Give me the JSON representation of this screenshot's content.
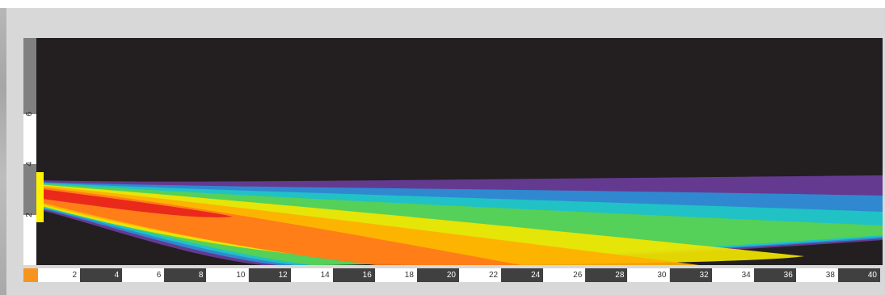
{
  "chart_data": {
    "type": "heatmap",
    "x_ticks": [
      "2",
      "4",
      "6",
      "8",
      "10",
      "12",
      "14",
      "16",
      "18",
      "20",
      "22",
      "24",
      "26",
      "28",
      "30",
      "32",
      "34",
      "36",
      "38",
      "40"
    ],
    "y_ticks": [
      "2",
      "4",
      "6"
    ],
    "xlim": [
      0,
      40
    ],
    "ylim": [
      0,
      9
    ],
    "colors": {
      "background": "#231f20",
      "ramp": [
        "#6a3d9a",
        "#2b8fd6",
        "#1fc7c4",
        "#5ad14e",
        "#f2e600",
        "#ffb000",
        "#ff7a1a",
        "#e8221c"
      ],
      "marker": "#fff200",
      "origin": "#f7941d"
    }
  }
}
